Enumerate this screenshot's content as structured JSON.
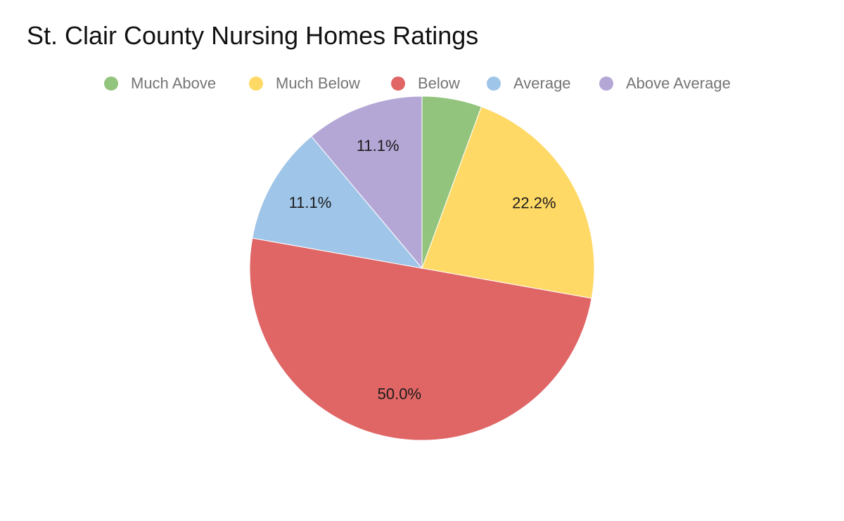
{
  "chart_data": {
    "type": "pie",
    "title": "St. Clair County Nursing Homes Ratings",
    "legend_position": "top",
    "slices": [
      {
        "label": "Much Above",
        "value": 5.6,
        "display_label": "",
        "color": "#93c47d"
      },
      {
        "label": "Much Below",
        "value": 22.2,
        "display_label": "22.2%",
        "color": "#ffd966"
      },
      {
        "label": "Below",
        "value": 50.0,
        "display_label": "50.0%",
        "color": "#e06666"
      },
      {
        "label": "Average",
        "value": 11.1,
        "display_label": "11.1%",
        "color": "#9fc5e8"
      },
      {
        "label": "Above Average",
        "value": 11.1,
        "display_label": "11.1%",
        "color": "#b4a7d6"
      }
    ]
  }
}
